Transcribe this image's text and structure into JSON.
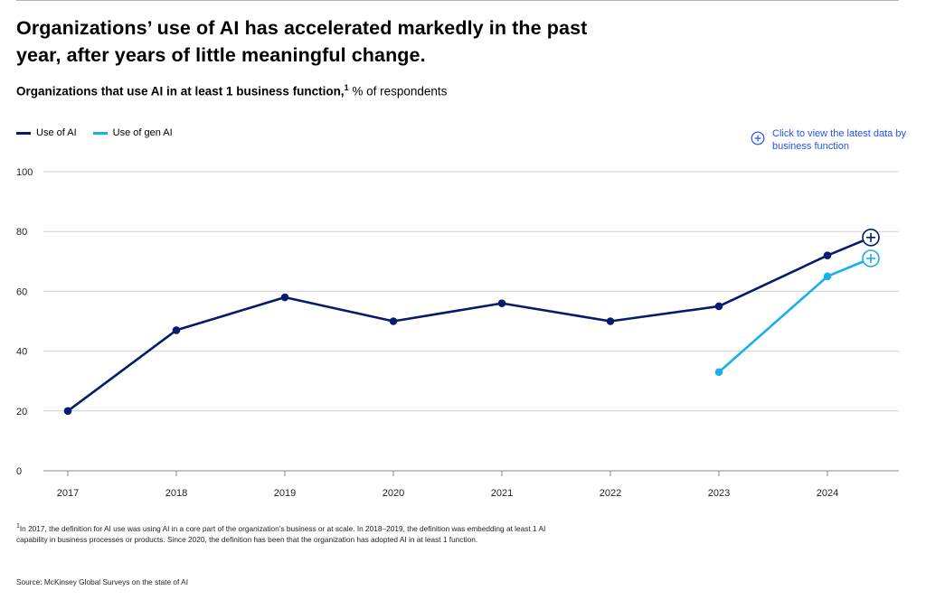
{
  "header": {
    "title": "Organizations’ use of AI has accelerated markedly in the past year, after years of little meaningful change.",
    "subtitle_bold": "Organizations that use AI in at least 1 business function,",
    "subtitle_sup": "1",
    "subtitle_rest": " % of respondents"
  },
  "legend": {
    "items": [
      {
        "label": "Use of AI",
        "color": "#051c6c"
      },
      {
        "label": "Use of gen AI",
        "color": "#1aaeeb"
      }
    ]
  },
  "cta": {
    "label": "Click to view the latest data by business function",
    "icon": "plus-circle-icon",
    "color": "#2251ff"
  },
  "chart_data": {
    "type": "line",
    "title": "Organizations that use AI in at least 1 business function, % of respondents",
    "xlabel": "",
    "ylabel": "% of respondents",
    "ylim": [
      0,
      100
    ],
    "yticks": [
      0,
      20,
      40,
      60,
      80,
      100
    ],
    "grid": true,
    "categories": [
      "2017",
      "2018",
      "2019",
      "2020",
      "2021",
      "2022",
      "2023",
      "2024"
    ],
    "series": [
      {
        "name": "Use of AI",
        "color": "#051c6c",
        "points": [
          {
            "x": 2017,
            "y": 20
          },
          {
            "x": 2018,
            "y": 47
          },
          {
            "x": 2019,
            "y": 58
          },
          {
            "x": 2020,
            "y": 50
          },
          {
            "x": 2021,
            "y": 56
          },
          {
            "x": 2022,
            "y": 50
          },
          {
            "x": 2023,
            "y": 55
          },
          {
            "x": 2024,
            "y": 72
          },
          {
            "x": 2024.4,
            "y": 78,
            "marker": "plus"
          }
        ]
      },
      {
        "name": "Use of gen AI",
        "color": "#1aaeeb",
        "points": [
          {
            "x": 2023,
            "y": 33
          },
          {
            "x": 2024,
            "y": 65
          },
          {
            "x": 2024.4,
            "y": 71,
            "marker": "plus"
          }
        ]
      }
    ]
  },
  "footer": {
    "footnote_sup": "1",
    "footnote": "In 2017, the definition for AI use was using AI in a core part of the organization’s business or at scale. In 2018–2019, the definition was embedding at least 1 AI capability in business processes or products. Since 2020, the definition has been that the organization has adopted AI in at least 1 function.",
    "source": "Source: McKinsey Global Surveys on the state of AI"
  }
}
